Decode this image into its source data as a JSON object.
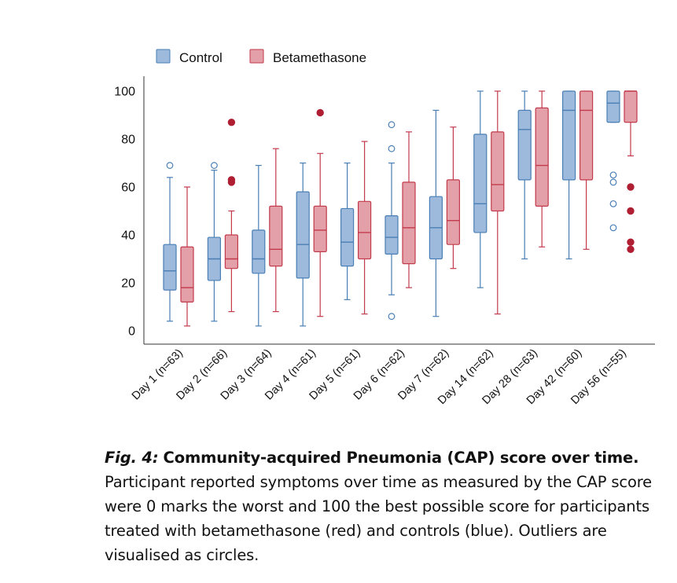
{
  "chart_data": {
    "type": "box",
    "ylim": [
      0,
      100
    ],
    "yticks": [
      0,
      20,
      40,
      60,
      80,
      100
    ],
    "legend_position": "top-left",
    "grid": false,
    "categories": [
      "Day 1 (n=63)",
      "Day 2 (n=66)",
      "Day 3 (n=64)",
      "Day 4 (n=61)",
      "Day 5 (n=61)",
      "Day 6 (n=62)",
      "Day 7 (n=62)",
      "Day 14 (n=62)",
      "Day 28 (n=63)",
      "Day 42 (n=60)",
      "Day 56 (n=55)"
    ],
    "series": [
      {
        "name": "Control",
        "color": "#9DB9DC",
        "edge_color": "#4A7FB5",
        "outlier_style": "open",
        "boxes": [
          {
            "whislo": 4,
            "q1": 17,
            "med": 25,
            "q3": 36,
            "whishi": 64,
            "fliers": [
              69
            ]
          },
          {
            "whislo": 4,
            "q1": 21,
            "med": 30,
            "q3": 39,
            "whishi": 67,
            "fliers": [
              69
            ]
          },
          {
            "whislo": 2,
            "q1": 24,
            "med": 30,
            "q3": 42,
            "whishi": 69,
            "fliers": []
          },
          {
            "whislo": 2,
            "q1": 22,
            "med": 36,
            "q3": 58,
            "whishi": 70,
            "fliers": []
          },
          {
            "whislo": 13,
            "q1": 27,
            "med": 37,
            "q3": 51,
            "whishi": 70,
            "fliers": []
          },
          {
            "whislo": 15,
            "q1": 32,
            "med": 39,
            "q3": 48,
            "whishi": 70,
            "fliers": [
              6,
              76,
              86
            ]
          },
          {
            "whislo": 6,
            "q1": 30,
            "med": 43,
            "q3": 56,
            "whishi": 92,
            "fliers": []
          },
          {
            "whislo": 18,
            "q1": 41,
            "med": 53,
            "q3": 82,
            "whishi": 100,
            "fliers": []
          },
          {
            "whislo": 30,
            "q1": 63,
            "med": 84,
            "q3": 92,
            "whishi": 100,
            "fliers": []
          },
          {
            "whislo": 30,
            "q1": 63,
            "med": 92,
            "q3": 100,
            "whishi": 100,
            "fliers": []
          },
          {
            "whislo": 87,
            "q1": 87,
            "med": 95,
            "q3": 100,
            "whishi": 100,
            "fliers": [
              43,
              53,
              62,
              65
            ]
          }
        ]
      },
      {
        "name": "Betamethasone",
        "color": "#E4A0A8",
        "edge_color": "#C23A4B",
        "outlier_style": "filled",
        "boxes": [
          {
            "whislo": 2,
            "q1": 12,
            "med": 18,
            "q3": 35,
            "whishi": 60,
            "fliers": []
          },
          {
            "whislo": 8,
            "q1": 26,
            "med": 30,
            "q3": 40,
            "whishi": 50,
            "fliers": [
              62,
              63,
              87
            ]
          },
          {
            "whislo": 8,
            "q1": 27,
            "med": 34,
            "q3": 52,
            "whishi": 76,
            "fliers": []
          },
          {
            "whislo": 6,
            "q1": 33,
            "med": 42,
            "q3": 52,
            "whishi": 74,
            "fliers": [
              91
            ]
          },
          {
            "whislo": 7,
            "q1": 30,
            "med": 41,
            "q3": 54,
            "whishi": 79,
            "fliers": []
          },
          {
            "whislo": 18,
            "q1": 28,
            "med": 43,
            "q3": 62,
            "whishi": 83,
            "fliers": []
          },
          {
            "whislo": 26,
            "q1": 36,
            "med": 46,
            "q3": 63,
            "whishi": 85,
            "fliers": []
          },
          {
            "whislo": 7,
            "q1": 50,
            "med": 61,
            "q3": 83,
            "whishi": 100,
            "fliers": []
          },
          {
            "whislo": 35,
            "q1": 52,
            "med": 69,
            "q3": 93,
            "whishi": 100,
            "fliers": []
          },
          {
            "whislo": 34,
            "q1": 63,
            "med": 92,
            "q3": 100,
            "whishi": 100,
            "fliers": []
          },
          {
            "whislo": 73,
            "q1": 87,
            "med": 100,
            "q3": 100,
            "whishi": 100,
            "fliers": [
              34,
              37,
              50,
              60
            ]
          }
        ]
      }
    ]
  },
  "caption": {
    "fig_label": "Fig. 4:",
    "title": "Community-acquired Pneumonia (CAP) score over time.",
    "body": "Participant reported symptoms over time as measured by the CAP score were 0 marks the worst and 100 the best possible score for participants treated with betamethasone (red) and controls (blue). Outliers are visualised as circles."
  }
}
